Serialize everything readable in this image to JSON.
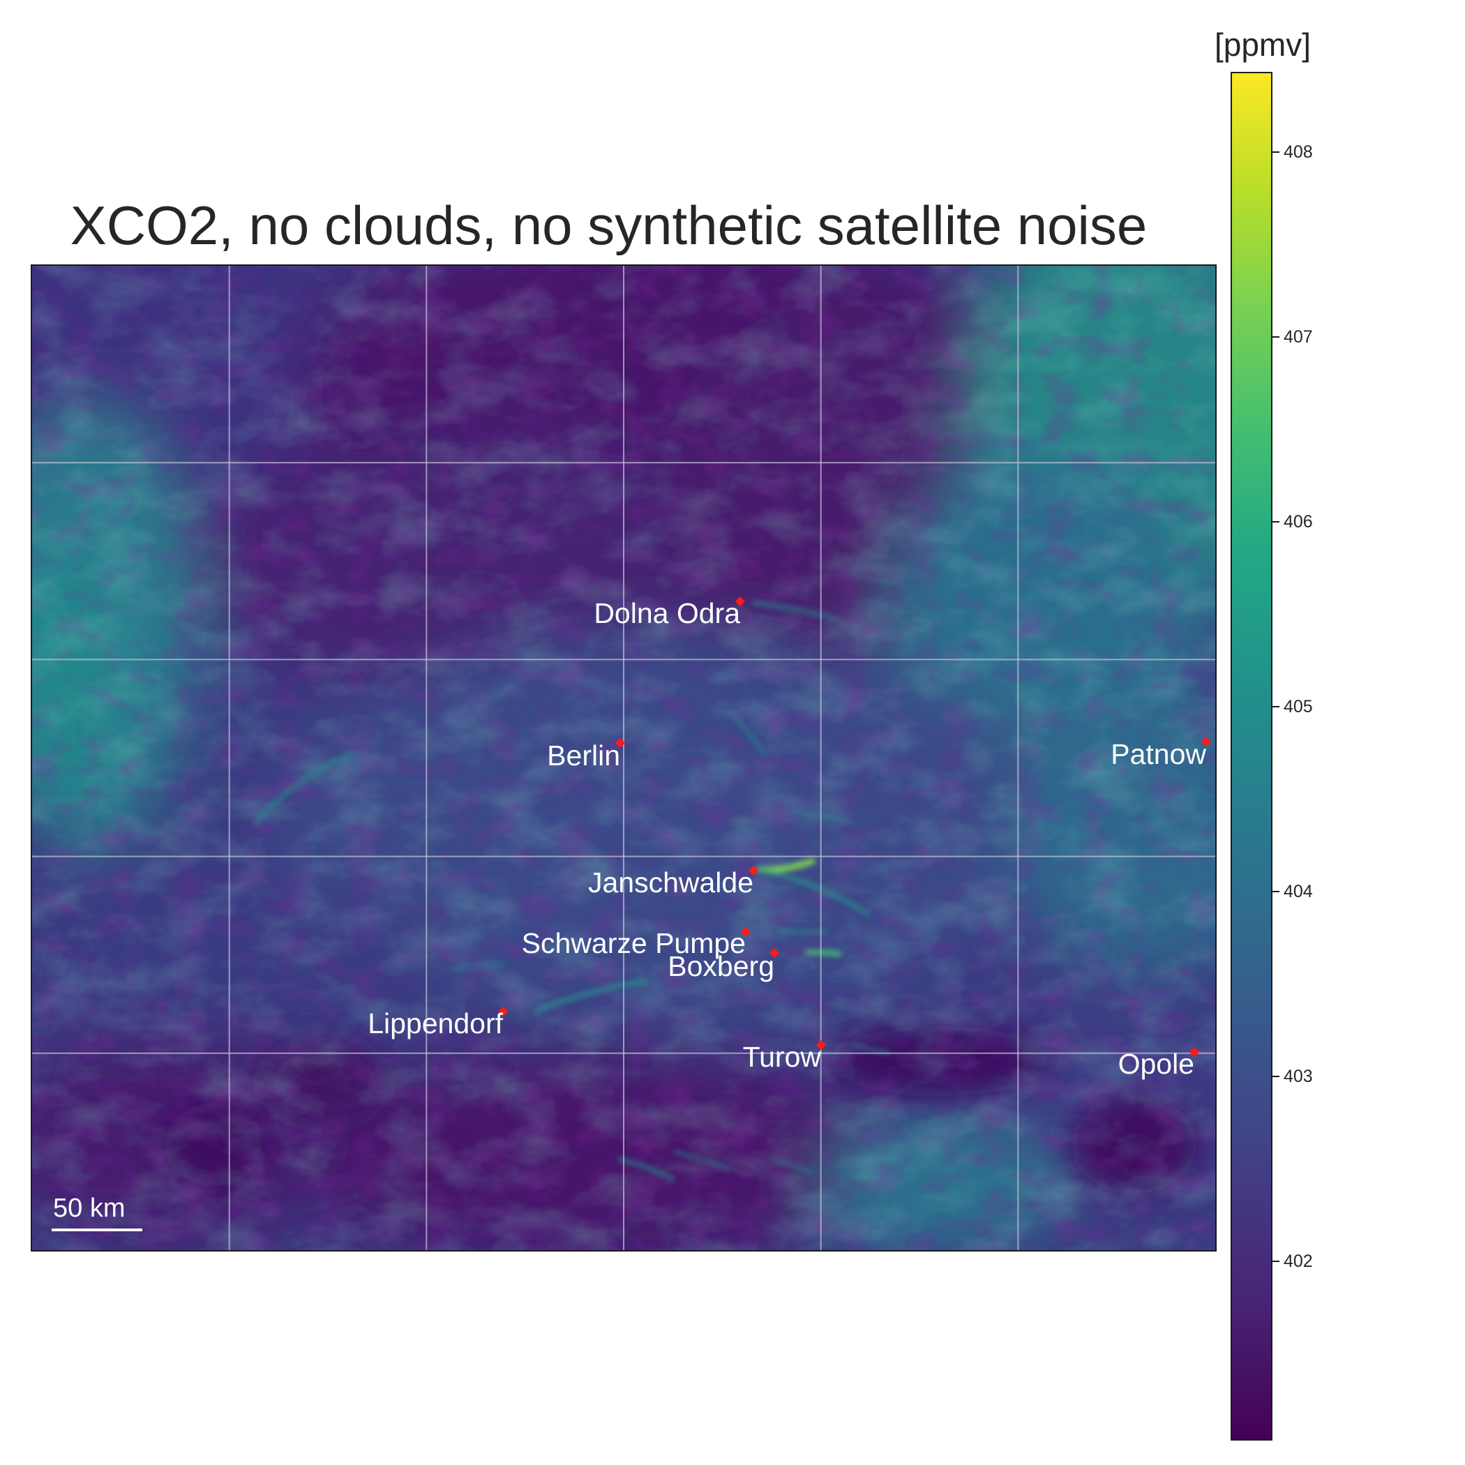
{
  "title": "XCO2, no clouds, no synthetic satellite noise",
  "scale_bar": {
    "label": "50 km"
  },
  "colorbar": {
    "unit": "[ppmv]",
    "colormap": "viridis",
    "range": [
      401.05,
      408.45
    ],
    "ticks": [
      "402",
      "403",
      "404",
      "405",
      "406",
      "407",
      "408"
    ]
  },
  "map": {
    "grid": true,
    "grid_divisions": {
      "columns": 6,
      "rows": 5
    },
    "marker_color": "#ff1a1a",
    "label_color": "#ffffff",
    "power_plants": [
      {
        "name": "Dolna Odra"
      },
      {
        "name": "Berlin"
      },
      {
        "name": "Patnow"
      },
      {
        "name": "Janschwalde"
      },
      {
        "name": "Schwarze Pumpe"
      },
      {
        "name": "Boxberg"
      },
      {
        "name": "Lippendorf"
      },
      {
        "name": "Turow"
      },
      {
        "name": "Opole"
      }
    ]
  }
}
